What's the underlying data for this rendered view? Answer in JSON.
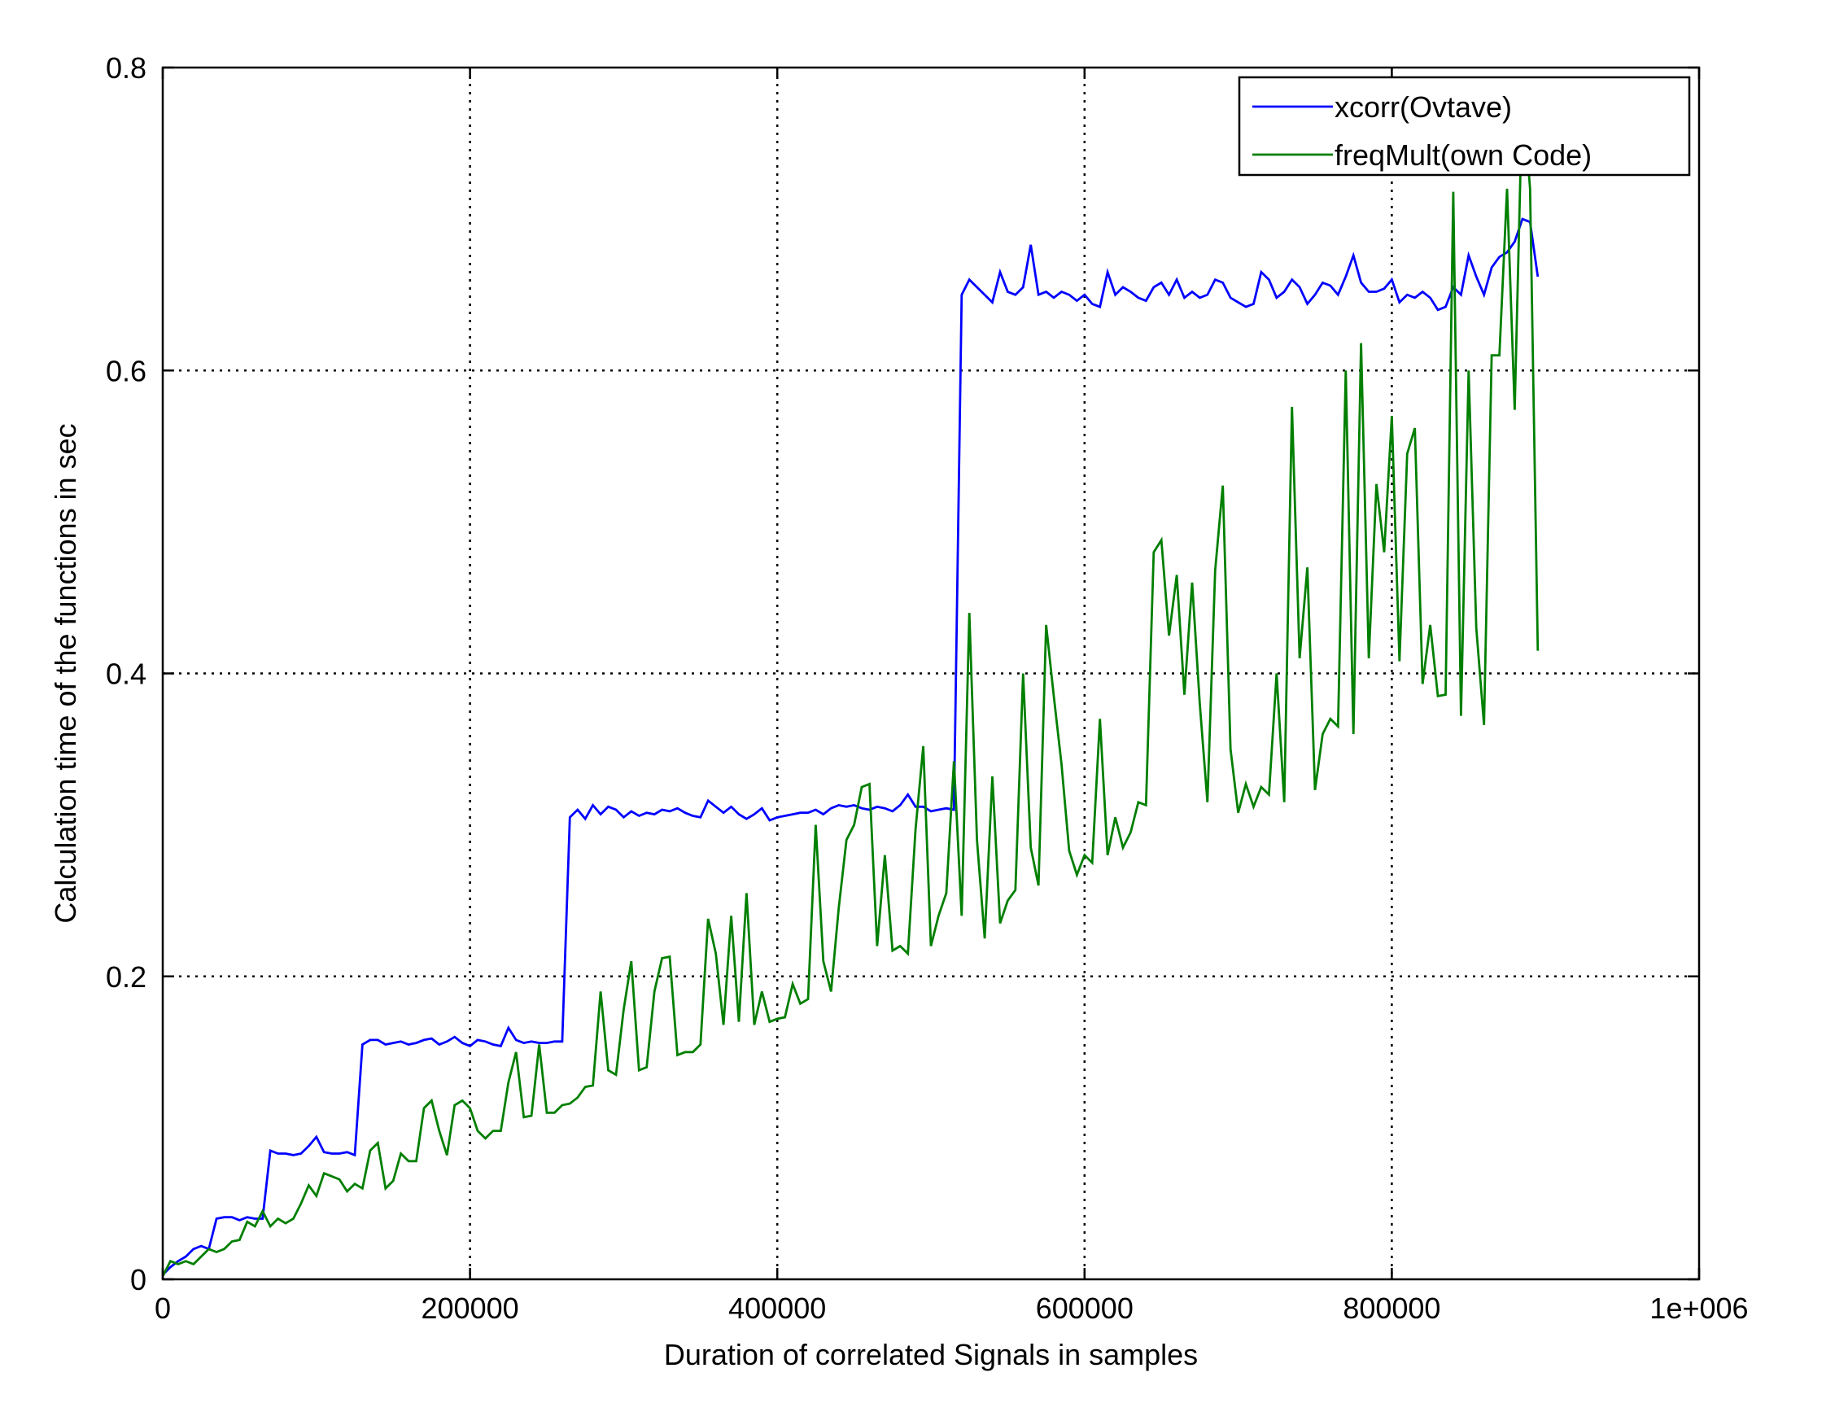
{
  "chart_data": {
    "type": "line",
    "title": "",
    "xlabel": "Duration of correlated Signals in samples",
    "ylabel": "Calculation time of the functions in sec",
    "xlim": [
      0,
      1000000
    ],
    "ylim": [
      0,
      0.8
    ],
    "xticks": [
      0,
      200000,
      400000,
      600000,
      800000,
      1000000
    ],
    "xtick_labels": [
      "0",
      "200000",
      "400000",
      "600000",
      "800000",
      "1e+006"
    ],
    "yticks": [
      0,
      0.2,
      0.4,
      0.6,
      0.8
    ],
    "ytick_labels": [
      "0",
      "0.2",
      "0.4",
      "0.6",
      "0.8"
    ],
    "grid": true,
    "legend_position": "top-right",
    "series": [
      {
        "name": "xcorr(Ovtave)",
        "color": "#0000ff",
        "x": [
          0,
          5000,
          10000,
          15000,
          20000,
          25000,
          30000,
          35000,
          40000,
          45000,
          50000,
          55000,
          60000,
          65000,
          70000,
          75000,
          80000,
          85000,
          90000,
          95000,
          100000,
          105000,
          110000,
          115000,
          120000,
          125000,
          130000,
          135000,
          140000,
          145000,
          150000,
          155000,
          160000,
          165000,
          170000,
          175000,
          180000,
          185000,
          190000,
          195000,
          200000,
          205000,
          210000,
          215000,
          220000,
          225000,
          230000,
          235000,
          240000,
          245000,
          250000,
          255000,
          260000,
          265000,
          270000,
          275000,
          280000,
          285000,
          290000,
          295000,
          300000,
          305000,
          310000,
          315000,
          320000,
          325000,
          330000,
          335000,
          340000,
          345000,
          350000,
          355000,
          360000,
          365000,
          370000,
          375000,
          380000,
          385000,
          390000,
          395000,
          400000,
          405000,
          410000,
          415000,
          420000,
          425000,
          430000,
          435000,
          440000,
          445000,
          450000,
          455000,
          460000,
          465000,
          470000,
          475000,
          480000,
          485000,
          490000,
          495000,
          500000,
          505000,
          510000,
          515000,
          520000,
          525000,
          530000,
          535000,
          540000,
          545000,
          550000,
          555000,
          560000,
          565000,
          570000,
          575000,
          580000,
          585000,
          590000,
          595000,
          600000,
          605000,
          610000,
          615000,
          620000,
          625000,
          630000,
          635000,
          640000,
          645000,
          650000,
          655000,
          660000,
          665000,
          670000,
          675000,
          680000,
          685000,
          690000,
          695000,
          700000,
          705000,
          710000,
          715000,
          720000,
          725000,
          730000,
          735000,
          740000,
          745000,
          750000,
          755000,
          760000,
          765000,
          770000,
          775000,
          780000,
          785000,
          790000,
          795000,
          800000,
          805000,
          810000,
          815000,
          820000,
          825000,
          830000,
          835000,
          840000,
          845000,
          850000,
          855000,
          860000,
          865000,
          870000,
          875000,
          880000,
          885000,
          890000,
          895000
        ],
        "y": [
          0.003,
          0.008,
          0.012,
          0.015,
          0.02,
          0.022,
          0.02,
          0.04,
          0.041,
          0.041,
          0.039,
          0.041,
          0.04,
          0.04,
          0.085,
          0.083,
          0.083,
          0.082,
          0.083,
          0.088,
          0.094,
          0.084,
          0.083,
          0.083,
          0.084,
          0.082,
          0.155,
          0.158,
          0.158,
          0.155,
          0.156,
          0.157,
          0.155,
          0.156,
          0.158,
          0.159,
          0.155,
          0.157,
          0.16,
          0.156,
          0.154,
          0.158,
          0.157,
          0.155,
          0.154,
          0.166,
          0.158,
          0.156,
          0.157,
          0.156,
          0.156,
          0.157,
          0.157,
          0.305,
          0.31,
          0.304,
          0.313,
          0.307,
          0.312,
          0.31,
          0.305,
          0.309,
          0.306,
          0.308,
          0.307,
          0.31,
          0.309,
          0.311,
          0.308,
          0.306,
          0.305,
          0.316,
          0.312,
          0.308,
          0.312,
          0.307,
          0.304,
          0.307,
          0.311,
          0.303,
          0.305,
          0.306,
          0.307,
          0.308,
          0.308,
          0.31,
          0.307,
          0.311,
          0.313,
          0.312,
          0.313,
          0.311,
          0.31,
          0.312,
          0.311,
          0.309,
          0.313,
          0.32,
          0.312,
          0.312,
          0.309,
          0.31,
          0.311,
          0.31,
          0.65,
          0.66,
          0.655,
          0.65,
          0.645,
          0.665,
          0.652,
          0.65,
          0.655,
          0.683,
          0.65,
          0.652,
          0.648,
          0.652,
          0.65,
          0.646,
          0.65,
          0.644,
          0.642,
          0.665,
          0.65,
          0.655,
          0.652,
          0.648,
          0.646,
          0.655,
          0.658,
          0.65,
          0.66,
          0.648,
          0.652,
          0.648,
          0.65,
          0.66,
          0.658,
          0.648,
          0.645,
          0.642,
          0.644,
          0.665,
          0.66,
          0.648,
          0.652,
          0.66,
          0.655,
          0.644,
          0.65,
          0.658,
          0.656,
          0.65,
          0.662,
          0.676,
          0.658,
          0.652,
          0.652,
          0.654,
          0.66,
          0.645,
          0.65,
          0.648,
          0.652,
          0.648,
          0.64,
          0.642,
          0.655,
          0.65,
          0.676,
          0.662,
          0.65,
          0.668,
          0.675,
          0.678,
          0.685,
          0.7,
          0.698,
          0.662
        ]
      },
      {
        "name": "freqMult(own Code)",
        "color": "#007f00",
        "x": [
          0,
          5000,
          10000,
          15000,
          20000,
          25000,
          30000,
          35000,
          40000,
          45000,
          50000,
          55000,
          60000,
          65000,
          70000,
          75000,
          80000,
          85000,
          90000,
          95000,
          100000,
          105000,
          110000,
          115000,
          120000,
          125000,
          130000,
          135000,
          140000,
          145000,
          150000,
          155000,
          160000,
          165000,
          170000,
          175000,
          180000,
          185000,
          190000,
          195000,
          200000,
          205000,
          210000,
          215000,
          220000,
          225000,
          230000,
          235000,
          240000,
          245000,
          250000,
          255000,
          260000,
          265000,
          270000,
          275000,
          280000,
          285000,
          290000,
          295000,
          300000,
          305000,
          310000,
          315000,
          320000,
          325000,
          330000,
          335000,
          340000,
          345000,
          350000,
          355000,
          360000,
          365000,
          370000,
          375000,
          380000,
          385000,
          390000,
          395000,
          400000,
          405000,
          410000,
          415000,
          420000,
          425000,
          430000,
          435000,
          440000,
          445000,
          450000,
          455000,
          460000,
          465000,
          470000,
          475000,
          480000,
          485000,
          490000,
          495000,
          500000,
          505000,
          510000,
          515000,
          520000,
          525000,
          530000,
          535000,
          540000,
          545000,
          550000,
          555000,
          560000,
          565000,
          570000,
          575000,
          580000,
          585000,
          590000,
          595000,
          600000,
          605000,
          610000,
          615000,
          620000,
          625000,
          630000,
          635000,
          640000,
          645000,
          650000,
          655000,
          660000,
          665000,
          670000,
          675000,
          680000,
          685000,
          690000,
          695000,
          700000,
          705000,
          710000,
          715000,
          720000,
          725000,
          730000,
          735000,
          740000,
          745000,
          750000,
          755000,
          760000,
          765000,
          770000,
          775000,
          780000,
          785000,
          790000,
          795000,
          800000,
          805000,
          810000,
          815000,
          820000,
          825000,
          830000,
          835000,
          840000,
          845000,
          850000,
          855000,
          860000,
          865000,
          870000,
          875000,
          880000,
          885000,
          890000,
          895000
        ],
        "y": [
          0.002,
          0.012,
          0.01,
          0.012,
          0.01,
          0.015,
          0.02,
          0.018,
          0.02,
          0.025,
          0.026,
          0.038,
          0.035,
          0.045,
          0.035,
          0.04,
          0.037,
          0.04,
          0.05,
          0.062,
          0.055,
          0.07,
          0.068,
          0.066,
          0.058,
          0.063,
          0.06,
          0.085,
          0.09,
          0.06,
          0.065,
          0.083,
          0.078,
          0.078,
          0.113,
          0.118,
          0.098,
          0.082,
          0.115,
          0.118,
          0.113,
          0.098,
          0.093,
          0.098,
          0.098,
          0.13,
          0.15,
          0.107,
          0.108,
          0.155,
          0.11,
          0.11,
          0.115,
          0.116,
          0.12,
          0.127,
          0.128,
          0.19,
          0.138,
          0.135,
          0.178,
          0.21,
          0.138,
          0.14,
          0.19,
          0.212,
          0.213,
          0.148,
          0.15,
          0.15,
          0.155,
          0.238,
          0.215,
          0.168,
          0.24,
          0.17,
          0.255,
          0.168,
          0.19,
          0.17,
          0.172,
          0.173,
          0.195,
          0.182,
          0.185,
          0.3,
          0.21,
          0.19,
          0.245,
          0.29,
          0.3,
          0.325,
          0.327,
          0.22,
          0.28,
          0.217,
          0.22,
          0.215,
          0.297,
          0.352,
          0.22,
          0.24,
          0.255,
          0.342,
          0.24,
          0.44,
          0.29,
          0.225,
          0.332,
          0.235,
          0.25,
          0.257,
          0.4,
          0.285,
          0.26,
          0.432,
          0.385,
          0.34,
          0.283,
          0.267,
          0.28,
          0.275,
          0.37,
          0.28,
          0.305,
          0.285,
          0.295,
          0.315,
          0.313,
          0.48,
          0.488,
          0.425,
          0.465,
          0.386,
          0.46,
          0.38,
          0.315,
          0.468,
          0.524,
          0.35,
          0.308,
          0.327,
          0.312,
          0.325,
          0.32,
          0.4,
          0.315,
          0.576,
          0.41,
          0.47,
          0.323,
          0.36,
          0.37,
          0.365,
          0.6,
          0.36,
          0.618,
          0.41,
          0.525,
          0.48,
          0.57,
          0.408,
          0.545,
          0.562,
          0.393,
          0.432,
          0.385,
          0.386,
          0.718,
          0.372,
          0.6,
          0.43,
          0.366,
          0.61,
          0.61,
          0.72,
          0.574,
          0.785,
          0.72,
          0.415
        ]
      }
    ]
  }
}
